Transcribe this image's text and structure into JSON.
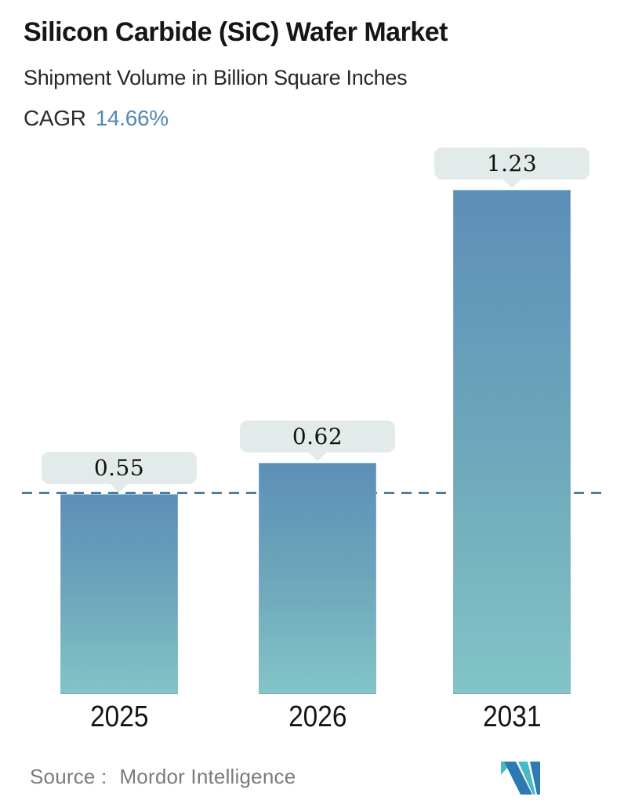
{
  "header": {
    "title": "Silicon Carbide (SiC) Wafer Market",
    "subtitle": "Shipment Volume in Billion Square Inches",
    "cagr_label": "CAGR",
    "cagr_value": "14.66%"
  },
  "chart_data": {
    "type": "bar",
    "title": "Silicon Carbide (SiC) Wafer Market",
    "subtitle": "Shipment Volume in Billion Square Inches",
    "cagr_percent": 14.66,
    "categories": [
      "2025",
      "2026",
      "2031"
    ],
    "values": [
      0.55,
      0.62,
      1.23
    ],
    "data_labels": [
      "0.55",
      "0.62",
      "1.23"
    ],
    "ylabel": "Shipment Volume (Billion Square Inches)",
    "xlabel": "",
    "grid": false,
    "legend": false,
    "reference_line": {
      "at_value": 0.55,
      "style": "dashed",
      "color": "#4c7da7"
    },
    "colors": {
      "bar_gradient_top": "#5c8fb8",
      "bar_gradient_mid": "#6fa9bb",
      "bar_gradient_bottom": "#82c4c7",
      "label_pill_bg": "#e3eaea",
      "accent_blue": "#5389b3",
      "dashed_line": "#4c7da7"
    }
  },
  "footer": {
    "source_label": "Source :",
    "source_value": "Mordor Intelligence",
    "logo_name": "mordor-intelligence-logo",
    "logo_colors": {
      "blue": "#2d79b4",
      "teal": "#45bac5"
    }
  }
}
